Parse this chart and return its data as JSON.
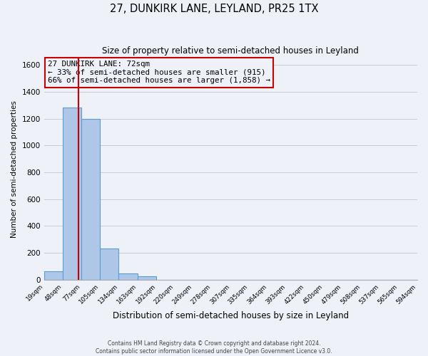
{
  "title": "27, DUNKIRK LANE, LEYLAND, PR25 1TX",
  "subtitle": "Size of property relative to semi-detached houses in Leyland",
  "xlabel": "Distribution of semi-detached houses by size in Leyland",
  "ylabel": "Number of semi-detached properties",
  "footer_line1": "Contains HM Land Registry data © Crown copyright and database right 2024.",
  "footer_line2": "Contains public sector information licensed under the Open Government Licence v3.0.",
  "bin_edges": [
    19,
    48,
    77,
    105,
    134,
    163,
    192,
    220,
    249,
    278,
    307,
    335,
    364,
    393,
    422,
    450,
    479,
    508,
    537,
    565,
    594
  ],
  "bin_counts": [
    60,
    1285,
    1197,
    232,
    45,
    28,
    0,
    0,
    0,
    0,
    0,
    0,
    0,
    0,
    0,
    0,
    0,
    0,
    0,
    0
  ],
  "bar_color": "#aec6e8",
  "bar_edge_color": "#5a9fd4",
  "property_size": 72,
  "marker_line_color": "#cc0000",
  "annotation_box_edge_color": "#cc0000",
  "annotation_lines": [
    "27 DUNKIRK LANE: 72sqm",
    "← 33% of semi-detached houses are smaller (915)",
    "66% of semi-detached houses are larger (1,858) →"
  ],
  "ylim": [
    0,
    1650
  ],
  "yticks": [
    0,
    200,
    400,
    600,
    800,
    1000,
    1200,
    1400,
    1600
  ],
  "grid_color": "#cccccc",
  "background_color": "#eef2f8"
}
